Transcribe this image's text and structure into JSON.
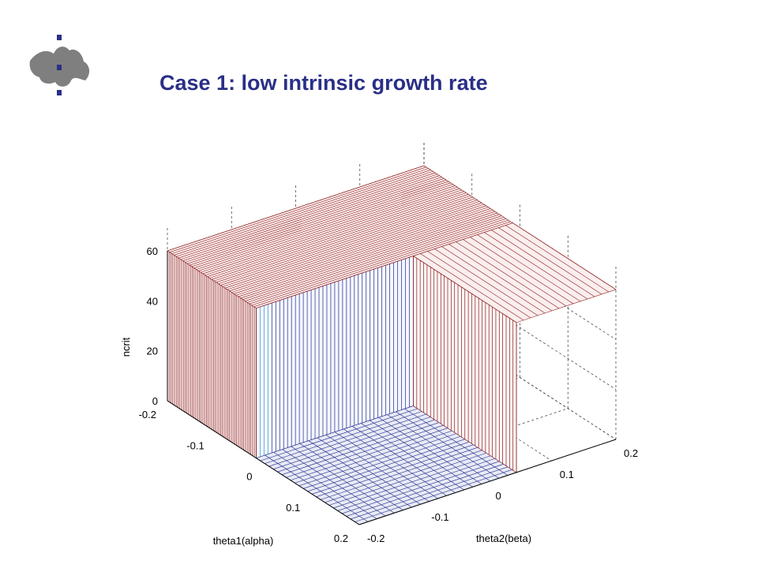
{
  "slide": {
    "title": "Case 1: low intrinsic growth rate",
    "logo_icon": "flame-crest-logo-icon"
  },
  "colors": {
    "title": "#2a2f86",
    "logo": "#7f7f7f",
    "logo_dots": "#2a2f86",
    "high_surface": "#8b1a1a",
    "low_surface": "#1f2a8a",
    "transition": "#2e9ad0"
  },
  "chart_data": {
    "type": "surface",
    "title": "",
    "xlabel": "theta1(alpha)",
    "ylabel": "theta2(beta)",
    "zlabel": "ncrit",
    "x_ticks": [
      "-0.2",
      "-0.1",
      "0",
      "0.1",
      "0.2"
    ],
    "y_ticks": [
      "-0.2",
      "-0.1",
      "0",
      "0.1",
      "0.2"
    ],
    "z_ticks": [
      "0",
      "20",
      "40",
      "60"
    ],
    "xlim": [
      -0.2,
      0.2
    ],
    "ylim": [
      -0.2,
      0.2
    ],
    "zlim": [
      0,
      60
    ],
    "grid": true,
    "plateau_value": 60,
    "floor_value": 0,
    "regions": [
      {
        "name": "high",
        "theta1": [
          -0.2,
          -0.015
        ],
        "theta2": [
          -0.2,
          0.2
        ],
        "ncrit": 60
      },
      {
        "name": "high",
        "theta1": [
          -0.015,
          0.2
        ],
        "theta2": [
          0.045,
          0.2
        ],
        "ncrit": 60
      },
      {
        "name": "low",
        "theta1": [
          -0.015,
          0.2
        ],
        "theta2": [
          -0.2,
          0.045
        ],
        "ncrit": 0
      }
    ]
  }
}
